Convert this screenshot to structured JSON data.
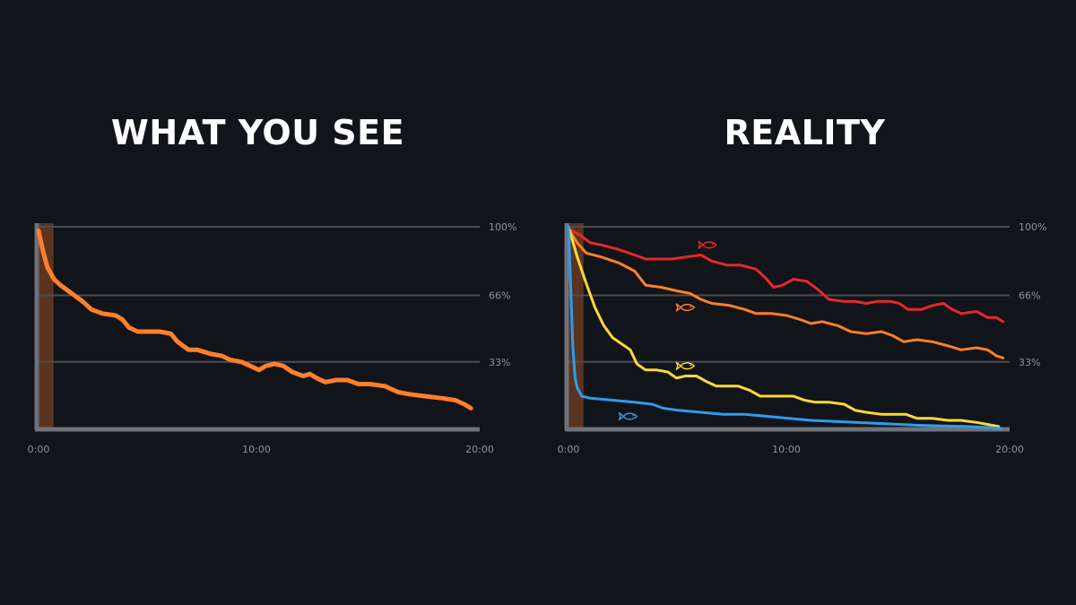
{
  "colors": {
    "background": "#111418",
    "grid": "#4a4e55",
    "axis": "#6e727a",
    "tick_text": "#8e939c",
    "title": "#ffffff",
    "intro_band": "#5a3420",
    "orange": "#ff7f2a",
    "red": "#e8272a",
    "yellow": "#ffd83a",
    "blue": "#2d9cf0"
  },
  "chart_data": [
    {
      "type": "line",
      "title": "WHAT YOU SEE",
      "xlabel": "",
      "ylabel": "",
      "xlim": [
        0,
        20
      ],
      "ylim": [
        0,
        100
      ],
      "x_ticks": [
        "0:00",
        "10:00",
        "20:00"
      ],
      "y_ticks": [
        "100%",
        "66%",
        "33%"
      ],
      "y_tick_values": [
        100,
        66,
        33
      ],
      "grid": true,
      "highlight_band_x": [
        0,
        0.6
      ],
      "series": [
        {
          "color": "orange",
          "icon": "",
          "points": [
            [
              0,
              98
            ],
            [
              0.2,
              88
            ],
            [
              0.4,
              80
            ],
            [
              0.7,
              74
            ],
            [
              1.0,
              71
            ],
            [
              1.5,
              67
            ],
            [
              2.0,
              63
            ],
            [
              2.4,
              59
            ],
            [
              2.9,
              57
            ],
            [
              3.5,
              56
            ],
            [
              3.8,
              54
            ],
            [
              4.1,
              50
            ],
            [
              4.5,
              48
            ],
            [
              5.0,
              48
            ],
            [
              5.5,
              48
            ],
            [
              6.0,
              47
            ],
            [
              6.3,
              43
            ],
            [
              6.8,
              39
            ],
            [
              7.2,
              39
            ],
            [
              7.8,
              37
            ],
            [
              8.3,
              36
            ],
            [
              8.7,
              34
            ],
            [
              9.2,
              33
            ],
            [
              9.6,
              31
            ],
            [
              10.0,
              29
            ],
            [
              10.3,
              31
            ],
            [
              10.7,
              32
            ],
            [
              11.1,
              31
            ],
            [
              11.5,
              28
            ],
            [
              12.0,
              26
            ],
            [
              12.3,
              27
            ],
            [
              12.6,
              25
            ],
            [
              13.0,
              23
            ],
            [
              13.5,
              24
            ],
            [
              14.0,
              24
            ],
            [
              14.5,
              22
            ],
            [
              15.0,
              22
            ],
            [
              15.7,
              21
            ],
            [
              16.3,
              18
            ],
            [
              16.8,
              17
            ],
            [
              17.5,
              16
            ],
            [
              18.3,
              15
            ],
            [
              18.9,
              14
            ],
            [
              19.3,
              12
            ],
            [
              19.6,
              10
            ]
          ]
        }
      ]
    },
    {
      "type": "line",
      "title": "REALITY",
      "xlabel": "",
      "ylabel": "",
      "xlim": [
        0,
        20
      ],
      "ylim": [
        0,
        100
      ],
      "x_ticks": [
        "0:00",
        "10:00",
        "20:00"
      ],
      "y_ticks": [
        "100%",
        "66%",
        "33%"
      ],
      "y_tick_values": [
        100,
        66,
        33
      ],
      "grid": true,
      "highlight_band_x": [
        0,
        0.6
      ],
      "series": [
        {
          "color": "red",
          "icon": "fish-icon",
          "icon_at": [
            6.3,
            91
          ],
          "points": [
            [
              0,
              99
            ],
            [
              0.5,
              96
            ],
            [
              1.0,
              92
            ],
            [
              1.5,
              91
            ],
            [
              2.2,
              89
            ],
            [
              3.0,
              86
            ],
            [
              3.5,
              84
            ],
            [
              4.0,
              84
            ],
            [
              4.7,
              84
            ],
            [
              5.3,
              85
            ],
            [
              6.0,
              86
            ],
            [
              6.5,
              83
            ],
            [
              7.2,
              81
            ],
            [
              7.8,
              81
            ],
            [
              8.5,
              79
            ],
            [
              8.9,
              75
            ],
            [
              9.3,
              70
            ],
            [
              9.7,
              71
            ],
            [
              10.2,
              74
            ],
            [
              10.8,
              73
            ],
            [
              11.3,
              69
            ],
            [
              11.8,
              64
            ],
            [
              12.5,
              63
            ],
            [
              13.0,
              63
            ],
            [
              13.5,
              62
            ],
            [
              14.0,
              63
            ],
            [
              14.6,
              63
            ],
            [
              15.0,
              62
            ],
            [
              15.4,
              59
            ],
            [
              16.0,
              59
            ],
            [
              16.5,
              61
            ],
            [
              17.0,
              62
            ],
            [
              17.4,
              59
            ],
            [
              17.8,
              57
            ],
            [
              18.5,
              58
            ],
            [
              19.0,
              55
            ],
            [
              19.4,
              55
            ],
            [
              19.7,
              53
            ]
          ]
        },
        {
          "color": "orange",
          "icon": "fish-icon",
          "icon_at": [
            5.3,
            60
          ],
          "points": [
            [
              0,
              99
            ],
            [
              0.4,
              92
            ],
            [
              0.8,
              87
            ],
            [
              1.5,
              85
            ],
            [
              2.3,
              82
            ],
            [
              3.0,
              78
            ],
            [
              3.5,
              71
            ],
            [
              4.2,
              70
            ],
            [
              5.0,
              68
            ],
            [
              5.5,
              67
            ],
            [
              6.0,
              64
            ],
            [
              6.5,
              62
            ],
            [
              7.3,
              61
            ],
            [
              8.0,
              59
            ],
            [
              8.5,
              57
            ],
            [
              9.2,
              57
            ],
            [
              9.9,
              56
            ],
            [
              10.5,
              54
            ],
            [
              11.0,
              52
            ],
            [
              11.5,
              53
            ],
            [
              12.2,
              51
            ],
            [
              12.8,
              48
            ],
            [
              13.5,
              47
            ],
            [
              14.2,
              48
            ],
            [
              14.7,
              46
            ],
            [
              15.2,
              43
            ],
            [
              15.8,
              44
            ],
            [
              16.5,
              43
            ],
            [
              17.2,
              41
            ],
            [
              17.8,
              39
            ],
            [
              18.5,
              40
            ],
            [
              19.0,
              39
            ],
            [
              19.4,
              36
            ],
            [
              19.7,
              35
            ]
          ]
        },
        {
          "color": "yellow",
          "icon": "fish-icon",
          "icon_at": [
            5.3,
            31
          ],
          "points": [
            [
              0,
              100
            ],
            [
              0.4,
              85
            ],
            [
              0.8,
              72
            ],
            [
              1.2,
              60
            ],
            [
              1.6,
              51
            ],
            [
              2.0,
              45
            ],
            [
              2.4,
              42
            ],
            [
              2.8,
              39
            ],
            [
              3.1,
              32
            ],
            [
              3.5,
              29
            ],
            [
              4.0,
              29
            ],
            [
              4.5,
              28
            ],
            [
              4.9,
              25
            ],
            [
              5.3,
              26
            ],
            [
              5.8,
              26
            ],
            [
              6.3,
              23
            ],
            [
              6.7,
              21
            ],
            [
              7.2,
              21
            ],
            [
              7.7,
              21
            ],
            [
              8.2,
              19
            ],
            [
              8.7,
              16
            ],
            [
              9.2,
              16
            ],
            [
              9.7,
              16
            ],
            [
              10.2,
              16
            ],
            [
              10.7,
              14
            ],
            [
              11.2,
              13
            ],
            [
              11.8,
              13
            ],
            [
              12.5,
              12
            ],
            [
              13.0,
              9
            ],
            [
              13.5,
              8
            ],
            [
              14.2,
              7
            ],
            [
              14.8,
              7
            ],
            [
              15.3,
              7
            ],
            [
              15.8,
              5
            ],
            [
              16.5,
              5
            ],
            [
              17.2,
              4
            ],
            [
              17.8,
              4
            ],
            [
              18.5,
              3
            ],
            [
              19.0,
              2
            ],
            [
              19.5,
              1
            ]
          ]
        },
        {
          "color": "blue",
          "icon": "fish-icon",
          "icon_at": [
            2.7,
            6
          ],
          "points": [
            [
              0,
              100
            ],
            [
              0.1,
              70
            ],
            [
              0.2,
              40
            ],
            [
              0.3,
              25
            ],
            [
              0.4,
              20
            ],
            [
              0.6,
              16
            ],
            [
              1.0,
              15
            ],
            [
              1.5,
              14.5
            ],
            [
              2.0,
              14
            ],
            [
              3.0,
              13
            ],
            [
              3.8,
              12
            ],
            [
              4.3,
              10
            ],
            [
              5.0,
              9
            ],
            [
              6.0,
              8
            ],
            [
              7.0,
              7
            ],
            [
              8.0,
              7
            ],
            [
              9.0,
              6
            ],
            [
              10.0,
              5
            ],
            [
              11.0,
              4
            ],
            [
              12.0,
              3.5
            ],
            [
              13.0,
              3
            ],
            [
              14.0,
              2.5
            ],
            [
              15.0,
              2
            ],
            [
              16.0,
              1.5
            ],
            [
              17.0,
              1.2
            ],
            [
              18.0,
              1
            ],
            [
              19.0,
              0.5
            ],
            [
              19.6,
              0
            ]
          ]
        }
      ]
    }
  ]
}
